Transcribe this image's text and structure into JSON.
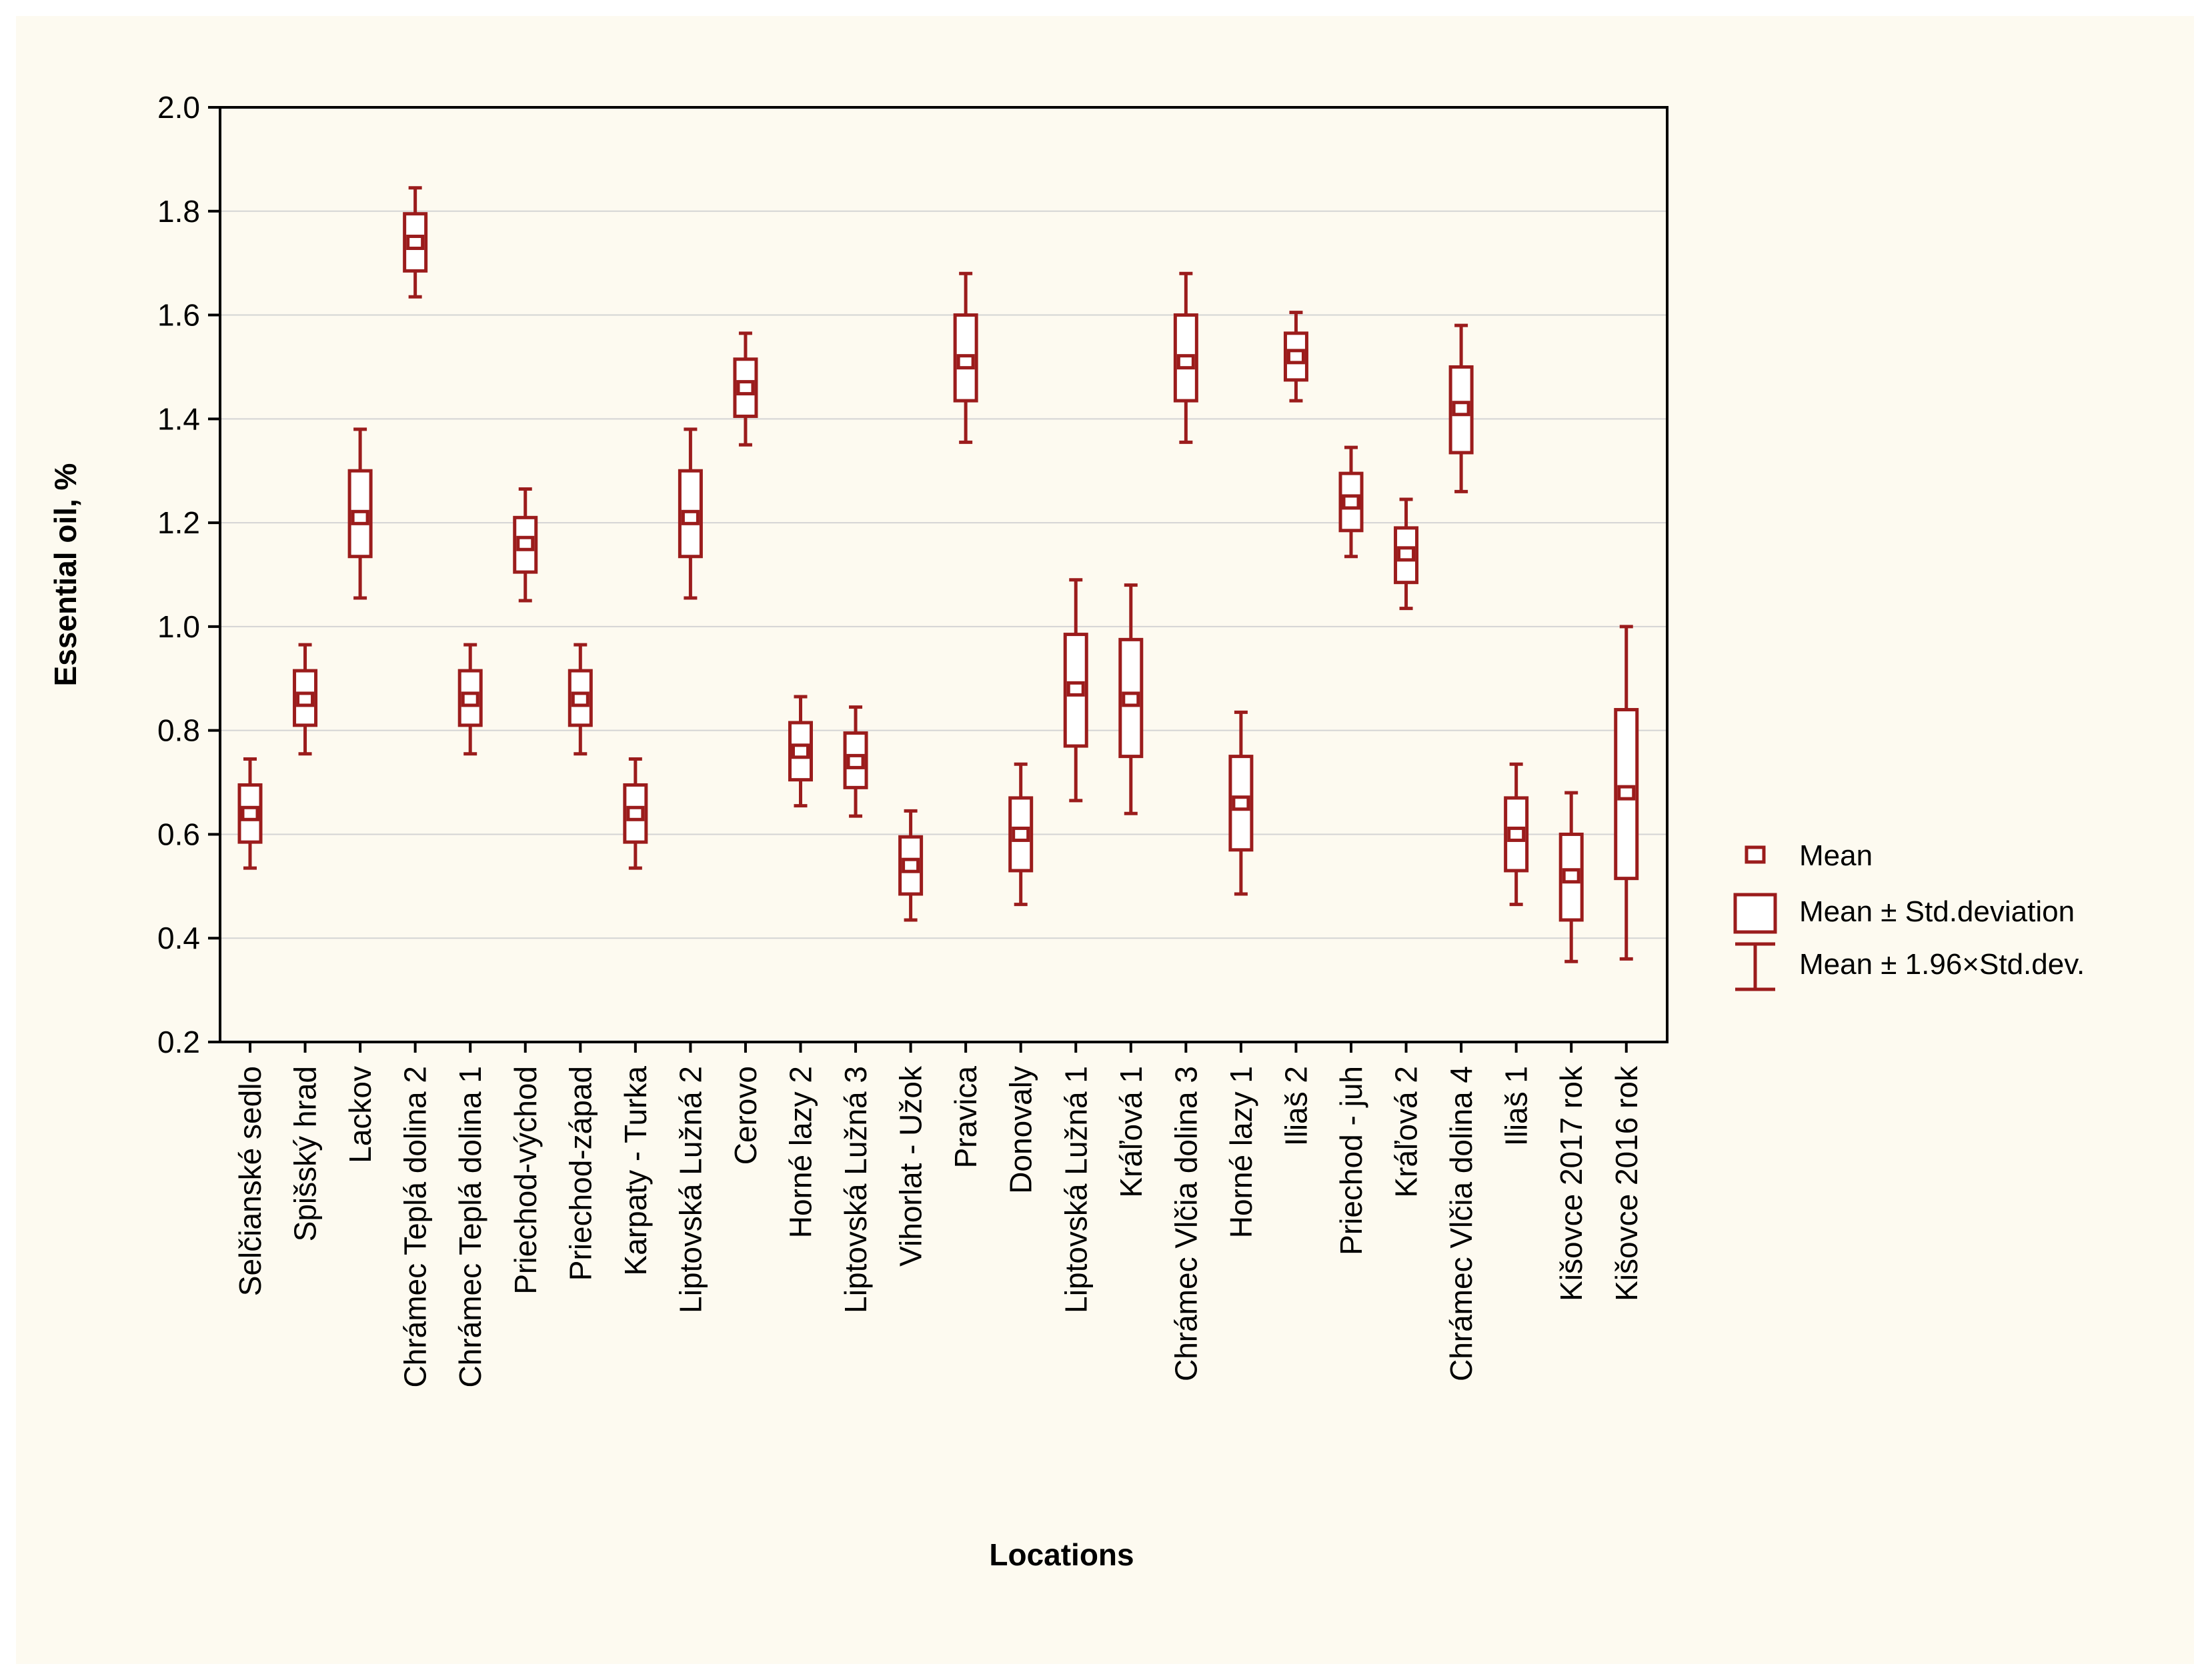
{
  "chart_data": {
    "type": "boxplot",
    "xlabel": "Locations",
    "ylabel": "Essential oil, %",
    "ylim": [
      0.2,
      2.0
    ],
    "yticks": [
      "0.2",
      "0.4",
      "0.6",
      "0.8",
      "1.0",
      "1.2",
      "1.4",
      "1.6",
      "1.8",
      "2.0"
    ],
    "grid": true,
    "legend_position": "right",
    "color": "#9b1c1c",
    "legend": [
      {
        "label": "Mean",
        "symbol": "point"
      },
      {
        "label": "Mean ± Std.deviation",
        "symbol": "box"
      },
      {
        "label": "Mean ± 1.96×Std.dev.",
        "symbol": "whisker"
      }
    ],
    "categories": [
      {
        "name": "Selčianské sedlo",
        "mean": 0.64,
        "sd_low": 0.585,
        "sd_high": 0.695,
        "ci_low": 0.535,
        "ci_high": 0.745
      },
      {
        "name": "Spišský hrad",
        "mean": 0.86,
        "sd_low": 0.81,
        "sd_high": 0.915,
        "ci_low": 0.755,
        "ci_high": 0.965
      },
      {
        "name": "Lackov",
        "mean": 1.21,
        "sd_low": 1.135,
        "sd_high": 1.3,
        "ci_low": 1.055,
        "ci_high": 1.38
      },
      {
        "name": "Chrámec Teplá dolina 2",
        "mean": 1.74,
        "sd_low": 1.685,
        "sd_high": 1.795,
        "ci_low": 1.635,
        "ci_high": 1.845
      },
      {
        "name": "Chrámec Teplá dolina 1",
        "mean": 0.86,
        "sd_low": 0.81,
        "sd_high": 0.915,
        "ci_low": 0.755,
        "ci_high": 0.965
      },
      {
        "name": "Priechod-východ",
        "mean": 1.16,
        "sd_low": 1.105,
        "sd_high": 1.21,
        "ci_low": 1.05,
        "ci_high": 1.265
      },
      {
        "name": "Priechod-západ",
        "mean": 0.86,
        "sd_low": 0.81,
        "sd_high": 0.915,
        "ci_low": 0.755,
        "ci_high": 0.965
      },
      {
        "name": "Karpaty - Turka",
        "mean": 0.64,
        "sd_low": 0.585,
        "sd_high": 0.695,
        "ci_low": 0.535,
        "ci_high": 0.745
      },
      {
        "name": "Liptovská Lužná 2",
        "mean": 1.21,
        "sd_low": 1.135,
        "sd_high": 1.3,
        "ci_low": 1.055,
        "ci_high": 1.38
      },
      {
        "name": "Cerovo",
        "mean": 1.46,
        "sd_low": 1.405,
        "sd_high": 1.515,
        "ci_low": 1.35,
        "ci_high": 1.565
      },
      {
        "name": "Horné lazy 2",
        "mean": 0.76,
        "sd_low": 0.705,
        "sd_high": 0.815,
        "ci_low": 0.655,
        "ci_high": 0.865
      },
      {
        "name": "Liptovská Lužná 3",
        "mean": 0.74,
        "sd_low": 0.69,
        "sd_high": 0.795,
        "ci_low": 0.635,
        "ci_high": 0.845
      },
      {
        "name": "Vihorlat - Užok",
        "mean": 0.54,
        "sd_low": 0.485,
        "sd_high": 0.595,
        "ci_low": 0.435,
        "ci_high": 0.645
      },
      {
        "name": "Pravica",
        "mean": 1.51,
        "sd_low": 1.435,
        "sd_high": 1.6,
        "ci_low": 1.355,
        "ci_high": 1.68
      },
      {
        "name": "Donovaly",
        "mean": 0.6,
        "sd_low": 0.53,
        "sd_high": 0.67,
        "ci_low": 0.465,
        "ci_high": 0.735
      },
      {
        "name": "Liptovská Lužná 1",
        "mean": 0.88,
        "sd_low": 0.77,
        "sd_high": 0.985,
        "ci_low": 0.665,
        "ci_high": 1.09
      },
      {
        "name": "Kráľová 1",
        "mean": 0.86,
        "sd_low": 0.75,
        "sd_high": 0.975,
        "ci_low": 0.64,
        "ci_high": 1.08
      },
      {
        "name": "Chrámec Vlčia dolina 3",
        "mean": 1.51,
        "sd_low": 1.435,
        "sd_high": 1.6,
        "ci_low": 1.355,
        "ci_high": 1.68
      },
      {
        "name": "Horné lazy 1",
        "mean": 0.66,
        "sd_low": 0.57,
        "sd_high": 0.75,
        "ci_low": 0.485,
        "ci_high": 0.835
      },
      {
        "name": "Iliaš 2",
        "mean": 1.52,
        "sd_low": 1.475,
        "sd_high": 1.565,
        "ci_low": 1.435,
        "ci_high": 1.605
      },
      {
        "name": "Priechod - juh",
        "mean": 1.24,
        "sd_low": 1.185,
        "sd_high": 1.295,
        "ci_low": 1.135,
        "ci_high": 1.345
      },
      {
        "name": "Kráľová 2",
        "mean": 1.14,
        "sd_low": 1.085,
        "sd_high": 1.19,
        "ci_low": 1.035,
        "ci_high": 1.245
      },
      {
        "name": "Chrámec Vlčia dolina 4",
        "mean": 1.42,
        "sd_low": 1.335,
        "sd_high": 1.5,
        "ci_low": 1.26,
        "ci_high": 1.58
      },
      {
        "name": "Iliaš 1",
        "mean": 0.6,
        "sd_low": 0.53,
        "sd_high": 0.67,
        "ci_low": 0.465,
        "ci_high": 0.735
      },
      {
        "name": "Kišovce 2017 rok",
        "mean": 0.52,
        "sd_low": 0.435,
        "sd_high": 0.6,
        "ci_low": 0.355,
        "ci_high": 0.68
      },
      {
        "name": "Kišovce 2016 rok",
        "mean": 0.68,
        "sd_low": 0.515,
        "sd_high": 0.84,
        "ci_low": 0.36,
        "ci_high": 1.0
      }
    ]
  }
}
